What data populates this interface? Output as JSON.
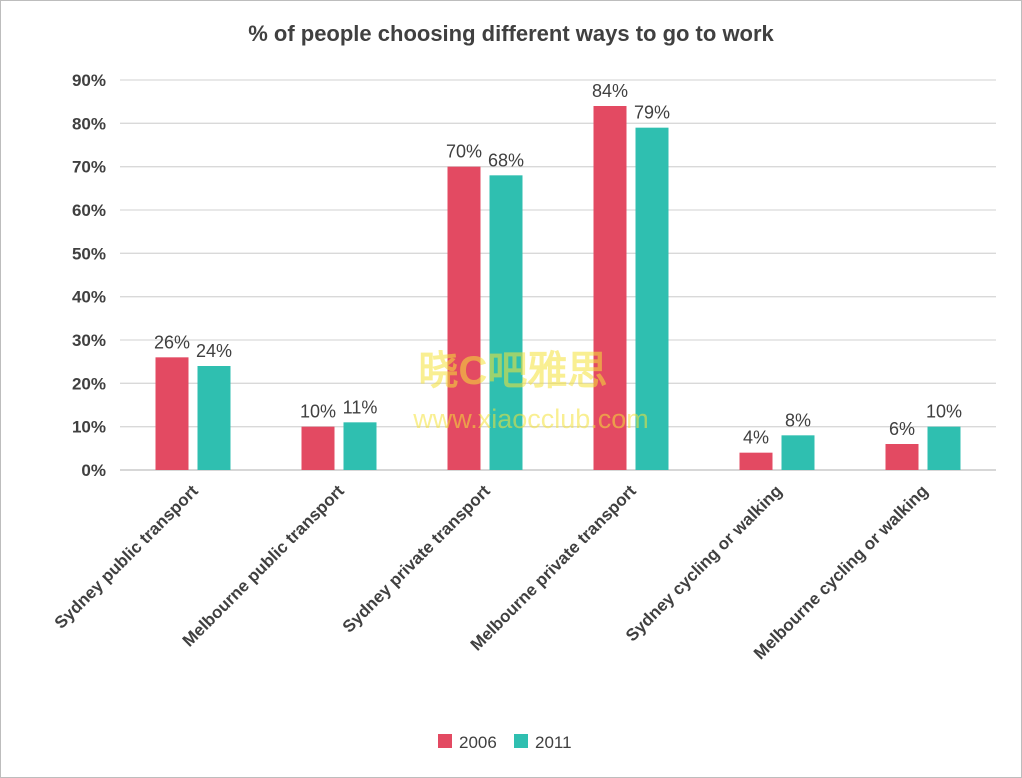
{
  "chart_data": {
    "type": "bar",
    "title": "% of people choosing different ways to go to work",
    "xlabel": "",
    "ylabel": "",
    "ylim": [
      0,
      90
    ],
    "yticks": [
      "0%",
      "10%",
      "20%",
      "30%",
      "40%",
      "50%",
      "60%",
      "70%",
      "80%",
      "90%"
    ],
    "grid": true,
    "legend_position": "bottom",
    "categories": [
      "Sydney public transport",
      "Melbourne public transport",
      "Sydney private transport",
      "Melbourne private transport",
      "Sydney cycling or walking",
      "Melbourne cycling or walking"
    ],
    "series": [
      {
        "name": "2006",
        "color": "#E34A62",
        "values": [
          26,
          10,
          70,
          84,
          4,
          6
        ],
        "labels": [
          "26%",
          "10%",
          "70%",
          "84%",
          "4%",
          "6%"
        ]
      },
      {
        "name": "2011",
        "color": "#2FBFB0",
        "values": [
          24,
          11,
          68,
          79,
          8,
          10
        ],
        "labels": [
          "24%",
          "11%",
          "68%",
          "79%",
          "8%",
          "10%"
        ]
      }
    ]
  },
  "watermark": {
    "line1": "晓C吧雅思",
    "line2": "www.xiaocclub.com"
  }
}
